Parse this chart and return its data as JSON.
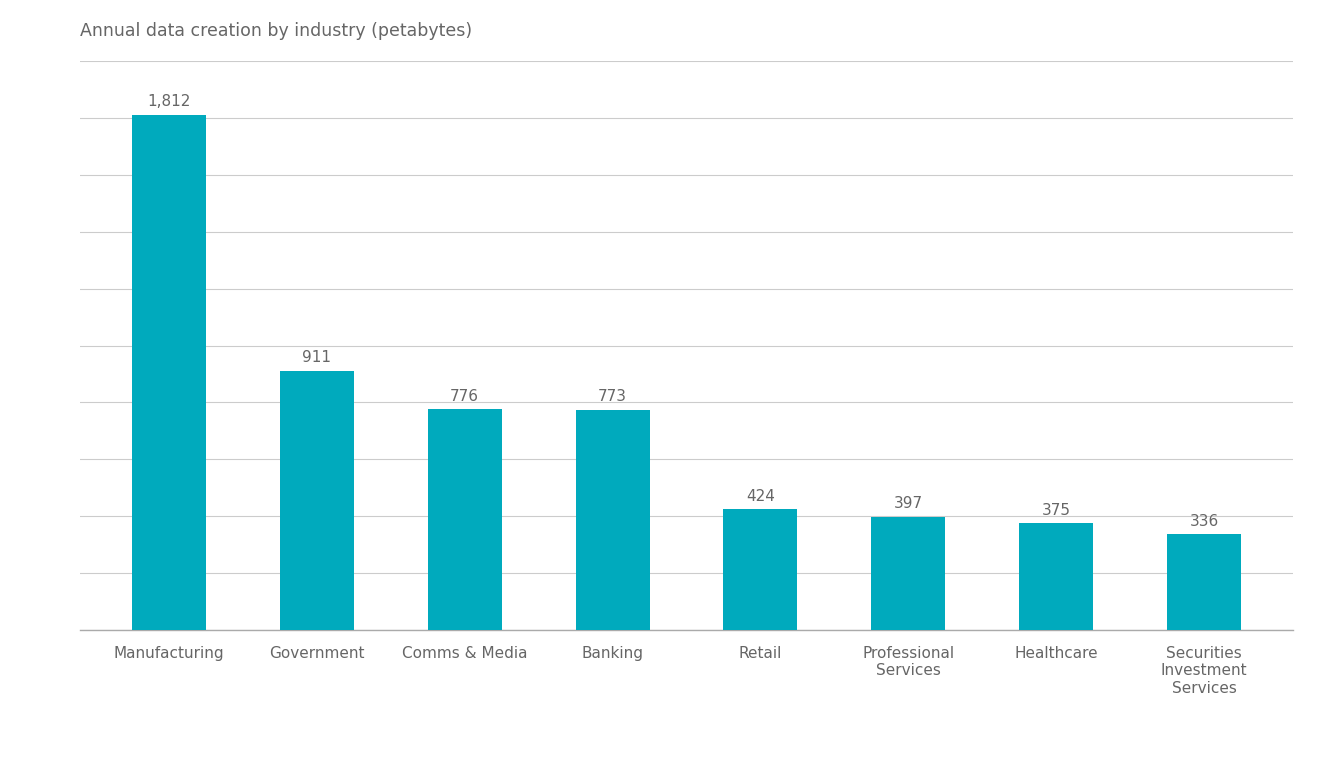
{
  "title": "Annual data creation by industry (petabytes)",
  "categories": [
    "Manufacturing",
    "Government",
    "Comms & Media",
    "Banking",
    "Retail",
    "Professional\nServices",
    "Healthcare",
    "Securities\nInvestment\nServices"
  ],
  "values": [
    1812,
    911,
    776,
    773,
    424,
    397,
    375,
    336
  ],
  "labels": [
    "1,812",
    "911",
    "776",
    "773",
    "424",
    "397",
    "375",
    "336"
  ],
  "bar_color": "#00AABD",
  "background_color": "#ffffff",
  "title_fontsize": 12.5,
  "label_fontsize": 11,
  "tick_fontsize": 11,
  "ylim": [
    0,
    2000
  ],
  "yticks": [
    0,
    200,
    400,
    600,
    800,
    1000,
    1200,
    1400,
    1600,
    1800,
    2000
  ],
  "grid_color": "#cccccc",
  "text_color": "#666666"
}
